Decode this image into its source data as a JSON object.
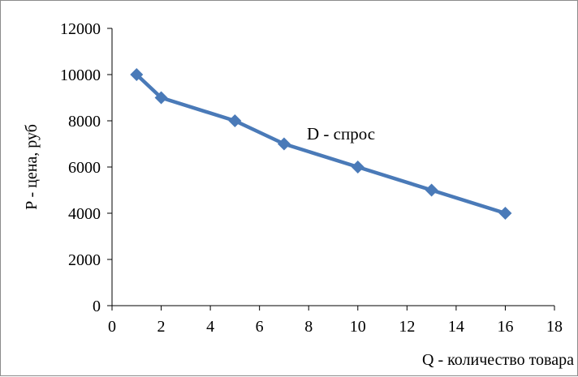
{
  "chart_data": {
    "type": "line",
    "title": "",
    "xlabel": "Q - количество товара",
    "ylabel": "P - цена, руб",
    "xlim": [
      0,
      18
    ],
    "ylim": [
      0,
      12000
    ],
    "x_ticks": [
      0,
      2,
      4,
      6,
      8,
      10,
      12,
      14,
      16,
      18
    ],
    "y_ticks": [
      0,
      2000,
      4000,
      6000,
      8000,
      10000,
      12000
    ],
    "grid": false,
    "legend": "none",
    "series": [
      {
        "color": "#4a7ab8",
        "marker": "diamond",
        "x": [
          1,
          2,
          5,
          7,
          10,
          13,
          16
        ],
        "y": [
          10000,
          9000,
          8000,
          7000,
          6000,
          5000,
          4000
        ]
      }
    ],
    "annotations": [
      {
        "text": "D - спрос"
      }
    ]
  }
}
